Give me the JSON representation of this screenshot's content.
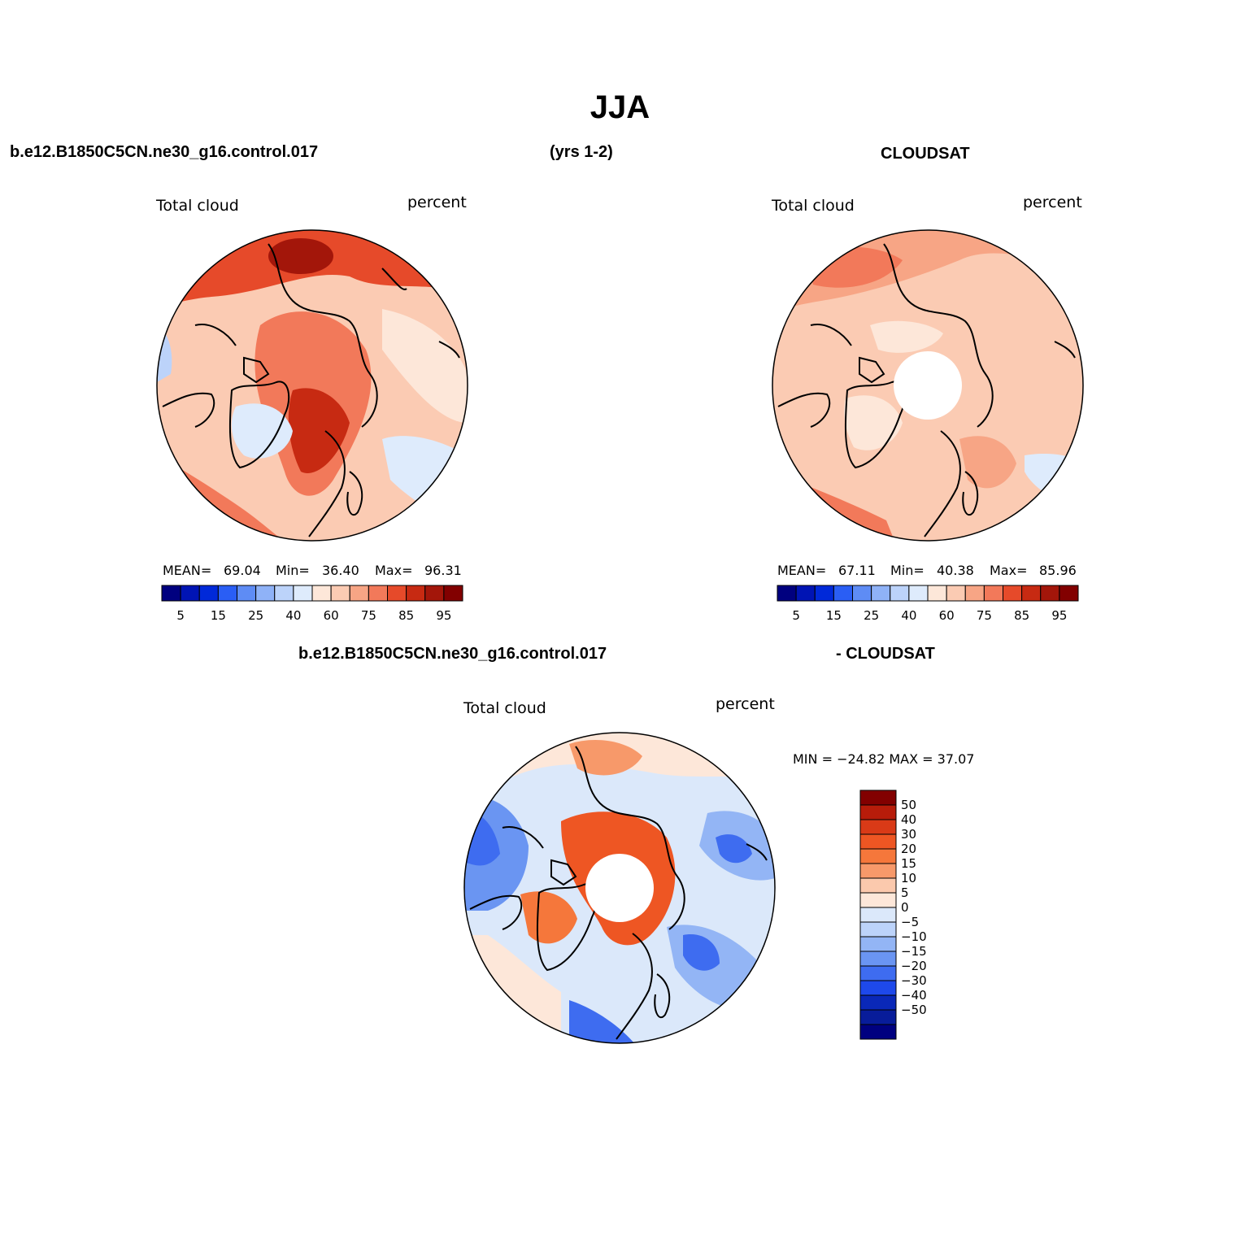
{
  "page": {
    "title": "JJA",
    "model_case": "b.e12.B1850C5CN.ne30_g16.control.017",
    "years": "(yrs 1-2)",
    "obs_name": "CLOUDSAT",
    "diff_obs_name": "- CLOUDSAT"
  },
  "panels": [
    {
      "id": "model",
      "variable": "Total cloud",
      "units": "percent",
      "stats": {
        "mean_label": "MEAN=",
        "mean": "69.04",
        "min_label": "Min=",
        "min": "36.40",
        "max_label": "Max=",
        "max": "96.31"
      },
      "center_missing": false
    },
    {
      "id": "obs",
      "variable": "Total cloud",
      "units": "percent",
      "stats": {
        "mean_label": "MEAN=",
        "mean": "67.11",
        "min_label": "Min=",
        "min": "40.38",
        "max_label": "Max=",
        "max": "85.96"
      },
      "center_missing": true
    },
    {
      "id": "diff",
      "variable": "Total cloud",
      "units": "percent",
      "stats_line": "MIN = −24.82 MAX =  37.07",
      "center_missing": true
    }
  ],
  "colorbar_horizontal": {
    "colors": [
      "#00007f",
      "#0014b4",
      "#0029d9",
      "#2a5ef5",
      "#5e8cf5",
      "#8fb2f7",
      "#bcd3fa",
      "#deebfc",
      "#fde7d9",
      "#fbcbb3",
      "#f7a585",
      "#f2795a",
      "#e64a2a",
      "#c72a12",
      "#a3160a",
      "#820000"
    ],
    "tick_labels": [
      "5",
      "15",
      "25",
      "40",
      "60",
      "75",
      "85",
      "95"
    ]
  },
  "colorbar_vertical": {
    "colors_top_to_bottom": [
      "#820000",
      "#b71c0a",
      "#d93a17",
      "#ee5623",
      "#f5773b",
      "#f7996a",
      "#fbc9ad",
      "#fde7d9",
      "#dbe8fa",
      "#bcd3fa",
      "#93b5f5",
      "#6a95f2",
      "#3e6cf0",
      "#1e49eb",
      "#0a28b8",
      "#081c9a",
      "#000080"
    ],
    "tick_labels": [
      "50",
      "40",
      "30",
      "20",
      "15",
      "10",
      "5",
      "0",
      "−5",
      "−10",
      "−15",
      "−20",
      "−30",
      "−40",
      "−50"
    ]
  },
  "map_colors": {
    "land_outline": "#000000",
    "model_field": {
      "base": "#fbcbb3",
      "mid": "#f2795a",
      "high": "#e64a2a",
      "peak": "#a3160a",
      "low": "#deebfc",
      "light": "#fde7d9"
    },
    "obs_field": {
      "base": "#fbcbb3",
      "mid": "#f7a585",
      "high": "#f2795a",
      "light": "#fde7d9",
      "low": "#deebfc"
    },
    "diff_field": {
      "base": "#fde7d9",
      "neg_light": "#dbe8fa",
      "neg": "#93b5f5",
      "neg_strong": "#3e6cf0",
      "pos": "#f7996a",
      "pos_strong": "#ee5623"
    }
  }
}
